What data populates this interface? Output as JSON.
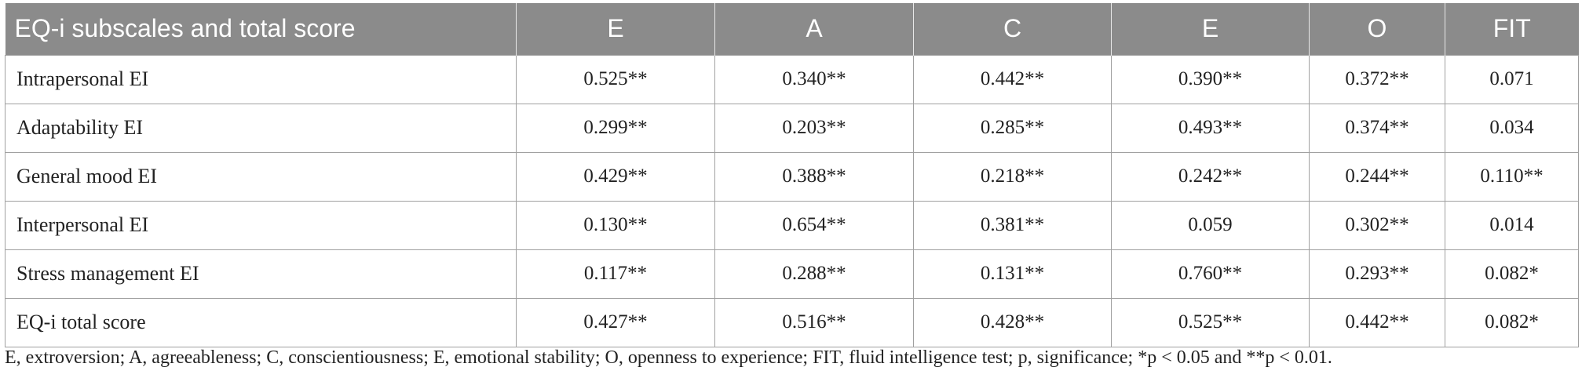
{
  "table": {
    "headers": [
      "EQ-i subscales and total score",
      "E",
      "A",
      "C",
      "E",
      "O",
      "FIT"
    ],
    "rows": [
      [
        "Intrapersonal EI",
        "0.525**",
        "0.340**",
        "0.442**",
        "0.390**",
        "0.372**",
        "0.071"
      ],
      [
        "Adaptability EI",
        "0.299**",
        "0.203**",
        "0.285**",
        "0.493**",
        "0.374**",
        "0.034"
      ],
      [
        "General mood EI",
        "0.429**",
        "0.388**",
        "0.218**",
        "0.242**",
        "0.244**",
        "0.110**"
      ],
      [
        "Interpersonal EI",
        "0.130**",
        "0.654**",
        "0.381**",
        "0.059",
        "0.302**",
        "0.014"
      ],
      [
        "Stress management EI",
        "0.117**",
        "0.288**",
        "0.131**",
        "0.760**",
        "0.293**",
        "0.082*"
      ],
      [
        "EQ-i total score",
        "0.427**",
        "0.516**",
        "0.428**",
        "0.525**",
        "0.442**",
        "0.082*"
      ]
    ]
  },
  "footnote": "E, extroversion; A, agreeableness; C, conscientiousness; E, emotional stability; O, openness to experience; FIT, fluid intelligence test; p, significance; *p < 0.05 and **p < 0.01."
}
